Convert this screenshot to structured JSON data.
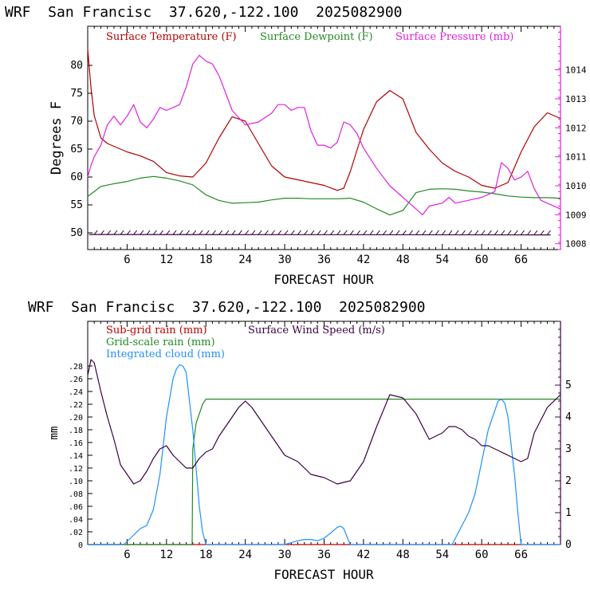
{
  "panels": [
    {
      "header": "WRF  San Francisc  37.620,-122.100  2025082900",
      "xlabel": "FORECAST HOUR",
      "ylabel_left": "Degrees F"
    },
    {
      "header": "WRF  San Francisc  37.620,-122.100  2025082900",
      "xlabel": "FORECAST HOUR",
      "ylabel_left": "mm"
    }
  ],
  "colors": {
    "temperature": "#b00000",
    "dewpoint": "#228b22",
    "pressure": "#e020e0",
    "subgrid_rain": "#c00000",
    "gridscale_rain": "#228b22",
    "cloud": "#1e90ff",
    "wind": "#3a0040",
    "axis": "#000000",
    "right_axis_upper": "#e020e0",
    "right_axis_lower": "#3a0040"
  },
  "chart_data": [
    {
      "type": "line",
      "x_range": [
        0,
        72
      ],
      "x_ticks": [
        6,
        12,
        18,
        24,
        30,
        36,
        42,
        48,
        54,
        60,
        66
      ],
      "y_left_ticks": [
        50,
        55,
        60,
        65,
        70,
        75,
        80
      ],
      "y_left_range": [
        47,
        87
      ],
      "y_right_ticks": [
        1008,
        1009,
        1010,
        1011,
        1012,
        1013,
        1014
      ],
      "y_right_range": [
        1007.8,
        1015.5
      ],
      "legend": [
        "Surface Temperature (F)",
        "Surface Dewpoint (F)",
        "Surface Pressure (mb)"
      ],
      "series": [
        {
          "name": "Surface Temperature (F)",
          "axis": "left",
          "x": [
            0,
            0.5,
            1,
            2,
            3,
            4,
            6,
            8,
            10,
            12,
            14,
            16,
            18,
            20,
            22,
            24,
            26,
            28,
            30,
            32,
            34,
            36,
            38,
            39,
            40,
            42,
            44,
            46,
            48,
            50,
            52,
            54,
            56,
            58,
            60,
            62,
            64,
            66,
            68,
            70,
            72
          ],
          "y": [
            83,
            76,
            71,
            67,
            66,
            65.5,
            64.5,
            63.8,
            62.8,
            60.8,
            60.2,
            60,
            62.5,
            67,
            70.8,
            70,
            66,
            62,
            60,
            59.5,
            59,
            58.5,
            57.6,
            58,
            61,
            68.5,
            73.5,
            75.5,
            74,
            68,
            65,
            62.5,
            61,
            60,
            58.5,
            58,
            59,
            64.5,
            69,
            71.5,
            70.5
          ]
        },
        {
          "name": "Surface Dewpoint (F)",
          "axis": "left",
          "x": [
            0,
            2,
            4,
            6,
            8,
            10,
            12,
            14,
            16,
            18,
            20,
            22,
            24,
            26,
            28,
            30,
            32,
            34,
            36,
            38,
            40,
            42,
            44,
            46,
            48,
            50,
            52,
            54,
            56,
            58,
            60,
            62,
            64,
            66,
            68,
            70,
            72
          ],
          "y": [
            56.5,
            58.3,
            58.8,
            59.2,
            59.8,
            60.1,
            59.8,
            59.3,
            58.6,
            56.8,
            55.8,
            55.3,
            55.4,
            55.5,
            55.9,
            56.2,
            56.2,
            56.1,
            56.1,
            56.1,
            56.2,
            55.5,
            54.3,
            53.2,
            54,
            57.2,
            57.8,
            57.9,
            57.8,
            57.5,
            57.3,
            57,
            56.6,
            56.4,
            56.3,
            56.3,
            56.2
          ]
        },
        {
          "name": "Surface Pressure (mb)",
          "axis": "right",
          "x": [
            0,
            0.5,
            1,
            2,
            3,
            4,
            5,
            6,
            7,
            8,
            9,
            10,
            11,
            12,
            13,
            14,
            15,
            16,
            17,
            18,
            19,
            20,
            21,
            22,
            24,
            26,
            28,
            29,
            30,
            31,
            32,
            33,
            34,
            35,
            36,
            37,
            38,
            39,
            40,
            41,
            42,
            44,
            46,
            48,
            50,
            51,
            52,
            54,
            55,
            56,
            58,
            60,
            61,
            62,
            63,
            64,
            65,
            66,
            67,
            68,
            69,
            70,
            72
          ],
          "y": [
            1010.3,
            1010.7,
            1011,
            1011.4,
            1012.1,
            1012.4,
            1012.1,
            1012.4,
            1012.8,
            1012.2,
            1012,
            1012.3,
            1012.7,
            1012.6,
            1012.7,
            1012.8,
            1013.4,
            1014.2,
            1014.5,
            1014.3,
            1014.2,
            1013.8,
            1013.2,
            1012.6,
            1012.1,
            1012.2,
            1012.5,
            1012.8,
            1012.8,
            1012.6,
            1012.7,
            1012.7,
            1011.9,
            1011.4,
            1011.4,
            1011.3,
            1011.5,
            1012.2,
            1012.1,
            1011.8,
            1011.3,
            1010.6,
            1010,
            1009.6,
            1009.2,
            1009,
            1009.3,
            1009.4,
            1009.6,
            1009.4,
            1009.5,
            1009.6,
            1009.7,
            1009.8,
            1010.8,
            1010.6,
            1010.2,
            1010.3,
            1010.5,
            1009.9,
            1009.5,
            1009.4,
            1009.2
          ]
        }
      ]
    },
    {
      "type": "line",
      "x_range": [
        0,
        72
      ],
      "x_ticks": [
        6,
        12,
        18,
        24,
        30,
        36,
        42,
        48,
        54,
        60,
        66
      ],
      "y_left_ticks": [
        0,
        0.02,
        0.04,
        0.06,
        0.08,
        0.1,
        0.12,
        0.14,
        0.16,
        0.18,
        0.2,
        0.22,
        0.24,
        0.26,
        0.28
      ],
      "y_left_tick_labels": [
        "0",
        ".02",
        ".04",
        ".06",
        ".08",
        ".10",
        ".12",
        ".14",
        ".16",
        ".18",
        ".20",
        ".22",
        ".24",
        ".26",
        ".28"
      ],
      "y_left_range": [
        0,
        0.35
      ],
      "y_right_ticks": [
        0,
        1,
        2,
        3,
        4,
        5
      ],
      "y_right_range": [
        0,
        7
      ],
      "legend": [
        "Sub-grid rain (mm)",
        "Surface Wind Speed (m/s)",
        "Grid-scale rain (mm)",
        "Integrated cloud (mm)"
      ],
      "series": [
        {
          "name": "Sub-grid rain (mm)",
          "axis": "left",
          "x": [
            0,
            72
          ],
          "y": [
            0,
            0
          ]
        },
        {
          "name": "Grid-scale rain (mm)",
          "axis": "left",
          "x": [
            0,
            15.9,
            16,
            16.5,
            17.5,
            18,
            20,
            72
          ],
          "y": [
            0,
            0,
            0.15,
            0.19,
            0.22,
            0.228,
            0.228,
            0.228
          ]
        },
        {
          "name": "Integrated cloud (mm)",
          "axis": "left",
          "x": [
            0,
            5.5,
            6,
            7,
            8,
            9,
            10,
            11,
            12,
            13,
            13.5,
            14,
            14.5,
            15,
            16,
            16.5,
            17,
            17.5,
            18,
            30,
            31,
            32,
            33,
            34,
            35,
            36,
            37,
            38,
            38.5,
            39,
            39.5,
            40,
            55.5,
            56,
            57,
            58,
            59,
            60,
            61,
            62,
            62.5,
            63,
            63.5,
            64,
            65,
            65.5,
            66,
            72
          ],
          "y": [
            0,
            0,
            0.005,
            0.015,
            0.025,
            0.03,
            0.055,
            0.11,
            0.2,
            0.26,
            0.275,
            0.282,
            0.28,
            0.27,
            0.18,
            0.12,
            0.06,
            0.02,
            0,
            0,
            0.003,
            0.006,
            0.008,
            0.008,
            0.006,
            0.01,
            0.018,
            0.027,
            0.029,
            0.025,
            0.012,
            0,
            0,
            0.01,
            0.03,
            0.05,
            0.08,
            0.13,
            0.18,
            0.21,
            0.225,
            0.228,
            0.222,
            0.2,
            0.11,
            0.05,
            0,
            0
          ]
        },
        {
          "name": "Surface Wind Speed (m/s)",
          "axis": "right",
          "x": [
            0,
            0.5,
            1,
            2,
            3,
            4,
            5,
            6,
            7,
            8,
            9,
            10,
            11,
            12,
            13,
            14,
            15,
            16,
            17,
            18,
            19,
            20,
            21,
            22,
            23,
            24,
            25,
            26,
            28,
            30,
            32,
            34,
            36,
            38,
            40,
            42,
            44,
            46,
            48,
            50,
            52,
            53,
            54,
            55,
            56,
            57,
            58,
            59,
            60,
            61,
            62,
            63,
            64,
            65,
            66,
            67,
            68,
            70,
            72
          ],
          "y": [
            5.3,
            5.8,
            5.7,
            4.8,
            4,
            3.3,
            2.5,
            2.2,
            1.9,
            2,
            2.3,
            2.7,
            3,
            3.1,
            2.8,
            2.6,
            2.4,
            2.4,
            2.7,
            2.9,
            3,
            3.4,
            3.7,
            4,
            4.3,
            4.5,
            4.3,
            4,
            3.4,
            2.8,
            2.6,
            2.2,
            2.1,
            1.9,
            2,
            2.6,
            3.7,
            4.7,
            4.6,
            4.1,
            3.3,
            3.4,
            3.5,
            3.7,
            3.7,
            3.6,
            3.4,
            3.3,
            3.1,
            3.1,
            3,
            2.9,
            2.8,
            2.7,
            2.6,
            2.7,
            3.5,
            4.3,
            4.7
          ]
        }
      ]
    }
  ]
}
